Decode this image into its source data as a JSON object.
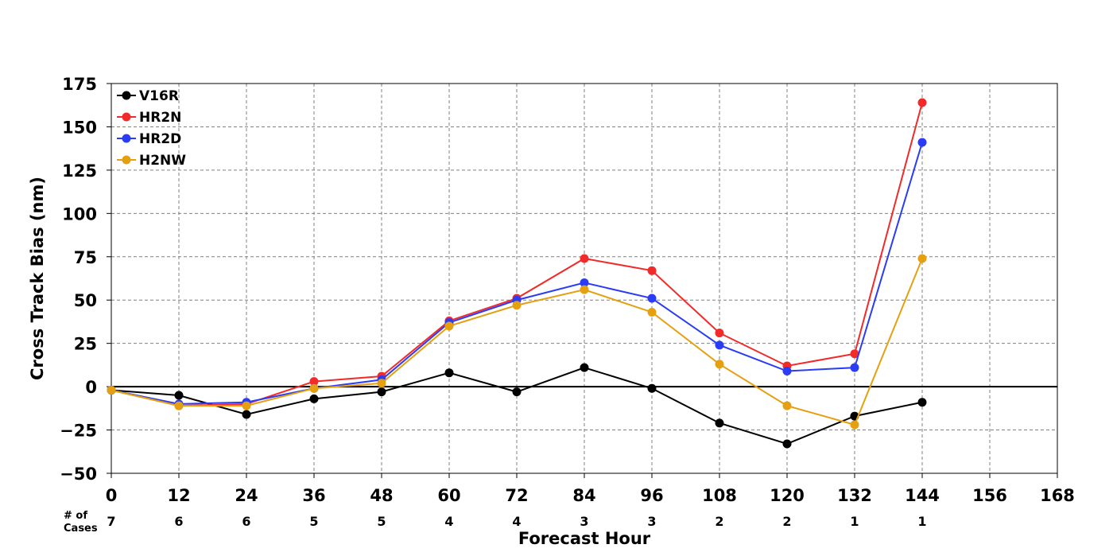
{
  "chart_data": {
    "type": "line",
    "title": "",
    "xlabel": "Forecast Hour",
    "ylabel": "Cross Track Bias (nm)",
    "xlim": [
      0,
      168
    ],
    "ylim": [
      -50,
      175
    ],
    "xticks": [
      0,
      12,
      24,
      36,
      48,
      60,
      72,
      84,
      96,
      108,
      120,
      132,
      144,
      156,
      168
    ],
    "xtick_labels": [
      "0",
      "12",
      "24",
      "36",
      "48",
      "60",
      "72",
      "84",
      "96",
      "108",
      "120",
      "132",
      "144",
      "156",
      "168"
    ],
    "yticks": [
      -50,
      -25,
      0,
      25,
      50,
      75,
      100,
      125,
      150,
      175
    ],
    "ytick_labels": [
      "−50",
      "−25",
      "0",
      "25",
      "50",
      "75",
      "100",
      "125",
      "150",
      "175"
    ],
    "grid": true,
    "grid_style": "dashed",
    "zero_line": true,
    "legend_position": "top-left",
    "cases_header": [
      "# of",
      "Cases"
    ],
    "cases": [
      {
        "x": 0,
        "label": "7"
      },
      {
        "x": 12,
        "label": "6"
      },
      {
        "x": 24,
        "label": "6"
      },
      {
        "x": 36,
        "label": "5"
      },
      {
        "x": 48,
        "label": "5"
      },
      {
        "x": 60,
        "label": "4"
      },
      {
        "x": 72,
        "label": "4"
      },
      {
        "x": 84,
        "label": "3"
      },
      {
        "x": 96,
        "label": "3"
      },
      {
        "x": 108,
        "label": "2"
      },
      {
        "x": 120,
        "label": "2"
      },
      {
        "x": 132,
        "label": "1"
      },
      {
        "x": 144,
        "label": "1"
      }
    ],
    "x": [
      0,
      12,
      24,
      36,
      48,
      60,
      72,
      84,
      96,
      108,
      120,
      132,
      144
    ],
    "series": [
      {
        "name": "V16R",
        "color": "#000000",
        "values": [
          -2,
          -5,
          -16,
          -7,
          -3,
          8,
          -3,
          11,
          -1,
          -21,
          -33,
          -17,
          -9
        ]
      },
      {
        "name": "HR2N",
        "color": "#f22a2a",
        "values": [
          -2,
          -11,
          -10,
          3,
          6,
          38,
          51,
          74,
          67,
          31,
          12,
          19,
          164
        ]
      },
      {
        "name": "HR2D",
        "color": "#2a3cf5",
        "values": [
          -2,
          -10,
          -9,
          -1,
          4,
          37,
          50,
          60,
          51,
          24,
          9,
          11,
          141
        ]
      },
      {
        "name": "H2NW",
        "color": "#e4a010",
        "values": [
          -2,
          -11,
          -11,
          -1,
          2,
          35,
          47,
          56,
          43,
          13,
          -11,
          -22,
          74
        ]
      }
    ]
  }
}
